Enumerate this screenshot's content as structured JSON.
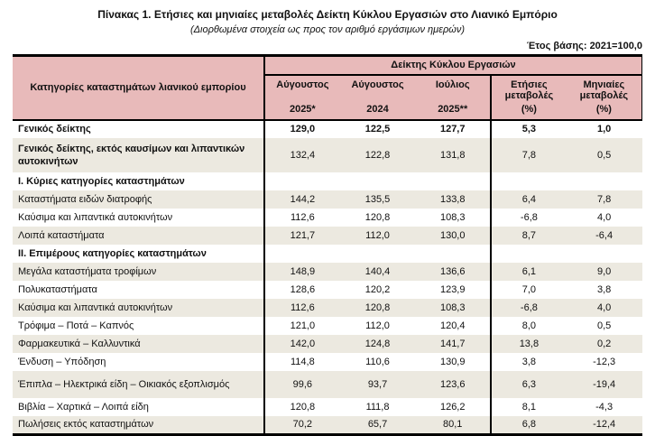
{
  "page": {
    "title": "Πίνακας 1. Ετήσιες και μηνιαίες μεταβολές Δείκτη Κύκλου Εργασιών στο Λιανικό Εμπόριο",
    "subtitle": "(Διορθωμένα στοιχεία ως προς τον αριθμό εργάσιμων ημερών)",
    "base_year_note": "Έτος βάσης: 2021=100,0"
  },
  "colors": {
    "header_bg": "#e8baba",
    "shaded_row_bg": "#ece9e0",
    "border": "#000000"
  },
  "table": {
    "category_header": "Κατηγορίες καταστημάτων λιανικού εμπορίου",
    "group_header": "Δείκτης Κύκλου Εργασιών",
    "columns": [
      {
        "line1": "Αύγουστος",
        "line2": "2025*"
      },
      {
        "line1": "Αύγουστος",
        "line2": "2024"
      },
      {
        "line1": "Ιούλιος",
        "line2": "2025**"
      },
      {
        "line1": "Ετήσιες μεταβολές",
        "line2": "(%)"
      },
      {
        "line1": "Μηνιαίες μεταβολές",
        "line2": "(%)"
      }
    ],
    "rows": [
      {
        "label": "Γενικός δείκτης",
        "values": [
          "129,0",
          "122,5",
          "127,7",
          "5,3",
          "1,0"
        ],
        "label_bold": true,
        "values_bold": true,
        "section": false,
        "shaded": false,
        "tall": false,
        "twoline": false
      },
      {
        "label": "Γενικός δείκτης, εκτός καυσίμων και λιπαντικών αυτοκινήτων",
        "values": [
          "132,4",
          "122,8",
          "131,8",
          "7,8",
          "0,5"
        ],
        "label_bold": true,
        "values_bold": false,
        "section": false,
        "shaded": true,
        "tall": false,
        "twoline": true
      },
      {
        "label": "Ι. Κύριες κατηγορίες καταστημάτων",
        "values": [
          "",
          "",
          "",
          "",
          ""
        ],
        "label_bold": true,
        "values_bold": false,
        "section": true,
        "shaded": false,
        "tall": false,
        "twoline": false
      },
      {
        "label": "Καταστήματα ειδών διατροφής",
        "values": [
          "144,2",
          "135,5",
          "133,8",
          "6,4",
          "7,8"
        ],
        "label_bold": false,
        "values_bold": false,
        "section": false,
        "shaded": true,
        "tall": false,
        "twoline": false
      },
      {
        "label": "Καύσιμα και λιπαντικά αυτοκινήτων",
        "values": [
          "112,6",
          "120,8",
          "108,3",
          "-6,8",
          "4,0"
        ],
        "label_bold": false,
        "values_bold": false,
        "section": false,
        "shaded": false,
        "tall": false,
        "twoline": false
      },
      {
        "label": "Λοιπά καταστήματα",
        "values": [
          "121,7",
          "112,0",
          "130,0",
          "8,7",
          "-6,4"
        ],
        "label_bold": false,
        "values_bold": false,
        "section": false,
        "shaded": true,
        "tall": false,
        "twoline": false
      },
      {
        "label": "ΙΙ. Επιμέρους κατηγορίες καταστημάτων",
        "values": [
          "",
          "",
          "",
          "",
          ""
        ],
        "label_bold": true,
        "values_bold": false,
        "section": true,
        "shaded": false,
        "tall": false,
        "twoline": false
      },
      {
        "label": "Μεγάλα καταστήματα τροφίμων",
        "values": [
          "148,9",
          "140,4",
          "136,6",
          "6,1",
          "9,0"
        ],
        "label_bold": false,
        "values_bold": false,
        "section": false,
        "shaded": true,
        "tall": false,
        "twoline": false
      },
      {
        "label": "Πολυκαταστήματα",
        "values": [
          "128,6",
          "120,2",
          "123,9",
          "7,0",
          "3,8"
        ],
        "label_bold": false,
        "values_bold": false,
        "section": false,
        "shaded": false,
        "tall": false,
        "twoline": false
      },
      {
        "label": "Καύσιμα και λιπαντικά αυτοκινήτων",
        "values": [
          "112,6",
          "120,8",
          "108,3",
          "-6,8",
          "4,0"
        ],
        "label_bold": false,
        "values_bold": false,
        "section": false,
        "shaded": true,
        "tall": false,
        "twoline": false
      },
      {
        "label": "Τρόφιμα – Ποτά – Καπνός",
        "values": [
          "121,0",
          "112,0",
          "120,4",
          "8,0",
          "0,5"
        ],
        "label_bold": false,
        "values_bold": false,
        "section": false,
        "shaded": false,
        "tall": false,
        "twoline": false
      },
      {
        "label": "Φαρμακευτικά – Καλλυντικά",
        "values": [
          "142,0",
          "124,8",
          "141,7",
          "13,8",
          "0,2"
        ],
        "label_bold": false,
        "values_bold": false,
        "section": false,
        "shaded": true,
        "tall": false,
        "twoline": false
      },
      {
        "label": "Ένδυση – Υπόδηση",
        "values": [
          "114,8",
          "110,6",
          "130,9",
          "3,8",
          "-12,3"
        ],
        "label_bold": false,
        "values_bold": false,
        "section": false,
        "shaded": false,
        "tall": false,
        "twoline": false
      },
      {
        "label": "Έπιπλα – Ηλεκτρικά είδη – Οικιακός εξοπλισμός",
        "values": [
          "99,6",
          "93,7",
          "123,6",
          "6,3",
          "-19,4"
        ],
        "label_bold": false,
        "values_bold": false,
        "section": false,
        "shaded": true,
        "tall": true,
        "twoline": false
      },
      {
        "label": "Βιβλία – Χαρτικά – Λοιπά είδη",
        "values": [
          "120,8",
          "111,8",
          "126,2",
          "8,1",
          "-4,3"
        ],
        "label_bold": false,
        "values_bold": false,
        "section": false,
        "shaded": false,
        "tall": false,
        "twoline": false
      },
      {
        "label": "Πωλήσεις εκτός καταστημάτων",
        "values": [
          "70,2",
          "65,7",
          "80,1",
          "6,8",
          "-12,4"
        ],
        "label_bold": false,
        "values_bold": false,
        "section": false,
        "shaded": true,
        "tall": false,
        "twoline": false
      }
    ]
  }
}
